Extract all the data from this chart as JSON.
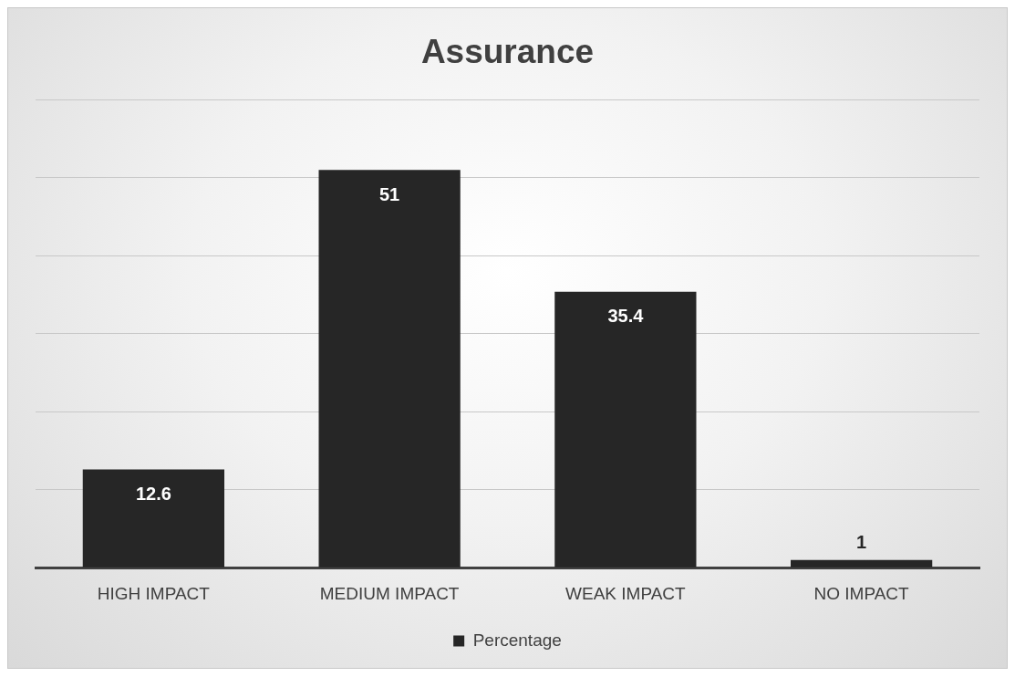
{
  "chart_data": {
    "type": "bar",
    "title": "Assurance",
    "categories": [
      "HIGH IMPACT",
      "MEDIUM IMPACT",
      "WEAK IMPACT",
      "NO IMPACT"
    ],
    "series": [
      {
        "name": "Percentage",
        "color": "#262626",
        "values": [
          12.6,
          51,
          35.4,
          1
        ]
      }
    ],
    "ylim": [
      0,
      60
    ],
    "yticks": [
      {
        "value": 0,
        "label": null
      },
      {
        "value": 10,
        "label": null
      },
      {
        "value": 20,
        "label": null
      },
      {
        "value": 30,
        "label": null
      },
      {
        "value": 40,
        "label": null
      },
      {
        "value": 50,
        "label": null
      },
      {
        "value": 60,
        "label": null
      }
    ],
    "grid": "y",
    "tick_labels": "x",
    "legend": "bottom",
    "data_labels": true
  }
}
